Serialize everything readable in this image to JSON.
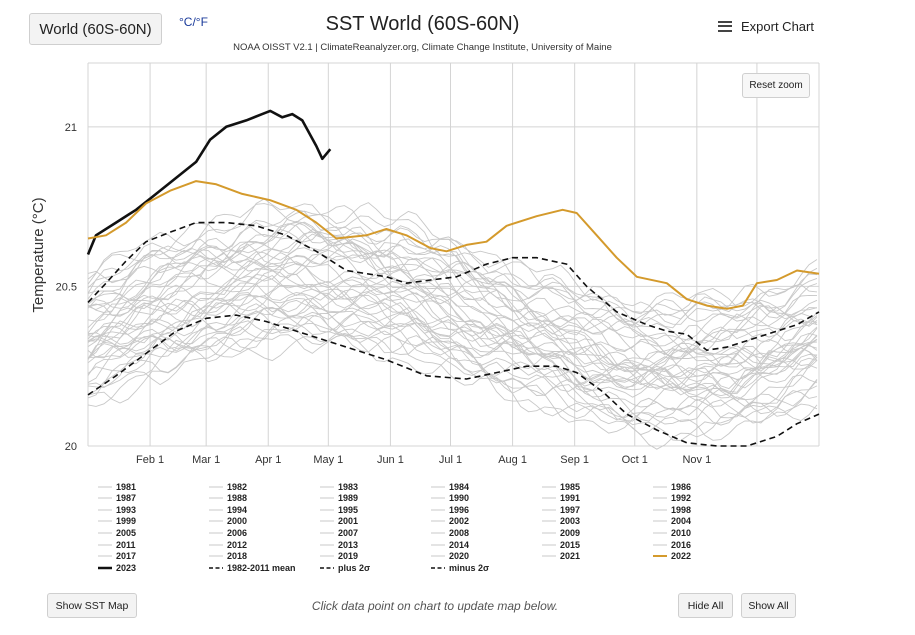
{
  "header": {
    "region_select": "World (60S-60N)",
    "unit_toggle": "°C/°F",
    "title": "SST World (60S-60N)",
    "subtitle": "NOAA OISST V2.1 | ClimateReanalyzer.org, Climate Change Institute, University of Maine",
    "export_label": "Export Chart"
  },
  "chart_controls": {
    "reset_zoom": "Reset zoom"
  },
  "footer": {
    "show_sst_map": "Show SST Map",
    "hint": "Click data point on chart to update map below.",
    "hide_all": "Hide All",
    "show_all": "Show All"
  },
  "chart_data": {
    "type": "line",
    "title": "SST World (60S-60N)",
    "ylabel": "Temperature (°C)",
    "xlabel": "",
    "ylim": [
      20,
      21.2
    ],
    "xlim": [
      1,
      366
    ],
    "x_ticks": [
      {
        "day": 32,
        "label": "Feb 1"
      },
      {
        "day": 60,
        "label": "Mar 1"
      },
      {
        "day": 91,
        "label": "Apr 1"
      },
      {
        "day": 121,
        "label": "May 1"
      },
      {
        "day": 152,
        "label": "Jun 1"
      },
      {
        "day": 182,
        "label": "Jul 1"
      },
      {
        "day": 213,
        "label": "Aug 1"
      },
      {
        "day": 244,
        "label": "Sep 1"
      },
      {
        "day": 274,
        "label": "Oct 1"
      },
      {
        "day": 305,
        "label": "Nov 1"
      }
    ],
    "y_ticks": [
      {
        "value": 20,
        "label": "20"
      },
      {
        "value": 20.5,
        "label": "20.5"
      },
      {
        "value": 21,
        "label": "21"
      }
    ],
    "grid": true,
    "legend_position": "bottom",
    "series": [
      {
        "name": "2023",
        "color": "#111111",
        "style": "solid-bold",
        "points": [
          [
            1,
            20.6
          ],
          [
            5,
            20.66
          ],
          [
            15,
            20.7
          ],
          [
            25,
            20.74
          ],
          [
            35,
            20.79
          ],
          [
            45,
            20.84
          ],
          [
            55,
            20.89
          ],
          [
            62,
            20.96
          ],
          [
            70,
            21.0
          ],
          [
            80,
            21.02
          ],
          [
            88,
            21.04
          ],
          [
            92,
            21.05
          ],
          [
            98,
            21.03
          ],
          [
            103,
            21.04
          ],
          [
            108,
            21.02
          ],
          [
            115,
            20.94
          ],
          [
            118,
            20.9
          ],
          [
            122,
            20.93
          ]
        ]
      },
      {
        "name": "2022",
        "color": "#d49a2c",
        "style": "solid",
        "points": [
          [
            1,
            20.65
          ],
          [
            10,
            20.66
          ],
          [
            20,
            20.7
          ],
          [
            30,
            20.76
          ],
          [
            42,
            20.8
          ],
          [
            55,
            20.83
          ],
          [
            65,
            20.82
          ],
          [
            78,
            20.79
          ],
          [
            92,
            20.77
          ],
          [
            105,
            20.74
          ],
          [
            115,
            20.7
          ],
          [
            125,
            20.65
          ],
          [
            140,
            20.66
          ],
          [
            150,
            20.68
          ],
          [
            160,
            20.66
          ],
          [
            172,
            20.62
          ],
          [
            180,
            20.61
          ],
          [
            190,
            20.63
          ],
          [
            200,
            20.64
          ],
          [
            210,
            20.69
          ],
          [
            225,
            20.72
          ],
          [
            238,
            20.74
          ],
          [
            245,
            20.73
          ],
          [
            255,
            20.66
          ],
          [
            265,
            20.59
          ],
          [
            275,
            20.53
          ],
          [
            290,
            20.51
          ],
          [
            300,
            20.46
          ],
          [
            310,
            20.44
          ],
          [
            320,
            20.43
          ],
          [
            328,
            20.44
          ],
          [
            335,
            20.51
          ],
          [
            345,
            20.52
          ],
          [
            355,
            20.55
          ],
          [
            366,
            20.54
          ]
        ]
      },
      {
        "name": "1982-2011 mean",
        "color": "#111111",
        "style": "dashed",
        "points": [
          [
            1,
            20.45
          ],
          [
            10,
            20.51
          ],
          [
            20,
            20.58
          ],
          [
            30,
            20.64
          ],
          [
            42,
            20.67
          ],
          [
            55,
            20.7
          ],
          [
            70,
            20.7
          ],
          [
            85,
            20.69
          ],
          [
            100,
            20.66
          ],
          [
            115,
            20.61
          ],
          [
            130,
            20.55
          ],
          [
            150,
            20.53
          ],
          [
            160,
            20.51
          ],
          [
            172,
            20.52
          ],
          [
            185,
            20.53
          ],
          [
            200,
            20.57
          ],
          [
            213,
            20.59
          ],
          [
            225,
            20.59
          ],
          [
            240,
            20.57
          ],
          [
            250,
            20.5
          ],
          [
            265,
            20.42
          ],
          [
            280,
            20.38
          ],
          [
            290,
            20.36
          ],
          [
            300,
            20.35
          ],
          [
            310,
            20.3
          ],
          [
            320,
            20.31
          ],
          [
            330,
            20.33
          ],
          [
            345,
            20.36
          ],
          [
            355,
            20.38
          ],
          [
            366,
            20.42
          ]
        ]
      },
      {
        "name": "plus 2σ",
        "color": "#111111",
        "style": "dashed"
      },
      {
        "name": "minus 2σ",
        "color": "#111111",
        "style": "dashed",
        "points": [
          [
            1,
            20.16
          ],
          [
            15,
            20.22
          ],
          [
            30,
            20.29
          ],
          [
            45,
            20.36
          ],
          [
            60,
            20.4
          ],
          [
            75,
            20.41
          ],
          [
            90,
            20.39
          ],
          [
            110,
            20.35
          ],
          [
            130,
            20.31
          ],
          [
            150,
            20.27
          ],
          [
            170,
            20.22
          ],
          [
            190,
            20.21
          ],
          [
            205,
            20.23
          ],
          [
            220,
            20.25
          ],
          [
            235,
            20.25
          ],
          [
            245,
            20.23
          ],
          [
            258,
            20.17
          ],
          [
            270,
            20.1
          ],
          [
            285,
            20.05
          ],
          [
            300,
            20.01
          ],
          [
            315,
            20.0
          ],
          [
            330,
            20.0
          ],
          [
            345,
            20.03
          ],
          [
            355,
            20.07
          ],
          [
            366,
            20.1
          ]
        ]
      },
      {
        "name": "1981"
      },
      {
        "name": "1982"
      },
      {
        "name": "1983"
      },
      {
        "name": "1984"
      },
      {
        "name": "1985"
      },
      {
        "name": "1986"
      },
      {
        "name": "1987"
      },
      {
        "name": "1988"
      },
      {
        "name": "1989"
      },
      {
        "name": "1990"
      },
      {
        "name": "1991"
      },
      {
        "name": "1992"
      },
      {
        "name": "1993"
      },
      {
        "name": "1994"
      },
      {
        "name": "1995"
      },
      {
        "name": "1996"
      },
      {
        "name": "1997"
      },
      {
        "name": "1998"
      },
      {
        "name": "1999"
      },
      {
        "name": "2000"
      },
      {
        "name": "2001"
      },
      {
        "name": "2002"
      },
      {
        "name": "2003"
      },
      {
        "name": "2004"
      },
      {
        "name": "2005"
      },
      {
        "name": "2006"
      },
      {
        "name": "2007"
      },
      {
        "name": "2008"
      },
      {
        "name": "2009"
      },
      {
        "name": "2010"
      },
      {
        "name": "2011"
      },
      {
        "name": "2012"
      },
      {
        "name": "2013"
      },
      {
        "name": "2014"
      },
      {
        "name": "2015"
      },
      {
        "name": "2016"
      },
      {
        "name": "2017"
      },
      {
        "name": "2018"
      },
      {
        "name": "2019"
      },
      {
        "name": "2020"
      },
      {
        "name": "2021"
      }
    ],
    "legend": [
      {
        "label": "1981",
        "style": "gray"
      },
      {
        "label": "1982",
        "style": "gray"
      },
      {
        "label": "1983",
        "style": "gray"
      },
      {
        "label": "1984",
        "style": "gray"
      },
      {
        "label": "1985",
        "style": "gray"
      },
      {
        "label": "1986",
        "style": "gray"
      },
      {
        "label": "1987",
        "style": "gray"
      },
      {
        "label": "1988",
        "style": "gray"
      },
      {
        "label": "1989",
        "style": "gray"
      },
      {
        "label": "1990",
        "style": "gray"
      },
      {
        "label": "1991",
        "style": "gray"
      },
      {
        "label": "1992",
        "style": "gray"
      },
      {
        "label": "1993",
        "style": "gray"
      },
      {
        "label": "1994",
        "style": "gray"
      },
      {
        "label": "1995",
        "style": "gray"
      },
      {
        "label": "1996",
        "style": "gray"
      },
      {
        "label": "1997",
        "style": "gray"
      },
      {
        "label": "1998",
        "style": "gray"
      },
      {
        "label": "1999",
        "style": "gray"
      },
      {
        "label": "2000",
        "style": "gray"
      },
      {
        "label": "2001",
        "style": "gray"
      },
      {
        "label": "2002",
        "style": "gray"
      },
      {
        "label": "2003",
        "style": "gray"
      },
      {
        "label": "2004",
        "style": "gray"
      },
      {
        "label": "2005",
        "style": "gray"
      },
      {
        "label": "2006",
        "style": "gray"
      },
      {
        "label": "2007",
        "style": "gray"
      },
      {
        "label": "2008",
        "style": "gray"
      },
      {
        "label": "2009",
        "style": "gray"
      },
      {
        "label": "2010",
        "style": "gray"
      },
      {
        "label": "2011",
        "style": "gray"
      },
      {
        "label": "2012",
        "style": "gray"
      },
      {
        "label": "2013",
        "style": "gray"
      },
      {
        "label": "2014",
        "style": "gray"
      },
      {
        "label": "2015",
        "style": "gray"
      },
      {
        "label": "2016",
        "style": "gray"
      },
      {
        "label": "2017",
        "style": "gray"
      },
      {
        "label": "2018",
        "style": "gray"
      },
      {
        "label": "2019",
        "style": "gray"
      },
      {
        "label": "2020",
        "style": "gray"
      },
      {
        "label": "2021",
        "style": "gray"
      },
      {
        "label": "2022",
        "style": "orange"
      },
      {
        "label": "2023",
        "style": "black"
      },
      {
        "label": "1982-2011 mean",
        "style": "dashed"
      },
      {
        "label": "plus 2σ",
        "style": "dashed"
      },
      {
        "label": "minus 2σ",
        "style": "dashed"
      }
    ],
    "colors": {
      "highlight_2023": "#111111",
      "highlight_2022": "#d49a2c",
      "other_years": "#c8c8c8",
      "grid": "#d4d4d4"
    }
  }
}
